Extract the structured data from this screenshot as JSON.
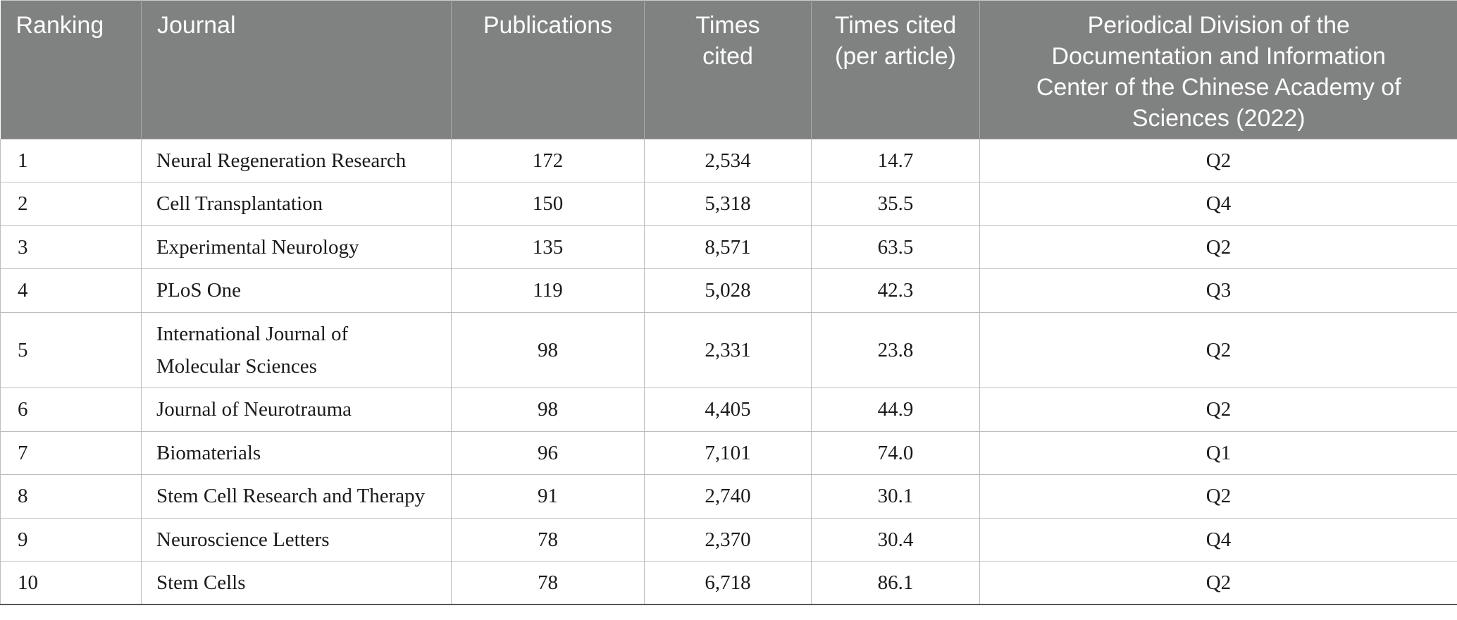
{
  "table": {
    "header": {
      "columns": [
        {
          "label": "Ranking"
        },
        {
          "label": "Journal"
        },
        {
          "label": "Publications"
        },
        {
          "label": "Times cited"
        },
        {
          "label": "Times cited (per article)"
        },
        {
          "label": "Periodical Division of the Documentation and Information Center of the Chinese Academy of Sciences (2022)"
        }
      ]
    },
    "rows": [
      {
        "ranking": "1",
        "journal": "Neural Regeneration Research",
        "publications": "172",
        "times_cited": "2,534",
        "times_cited_per_article": "14.7",
        "division": "Q2"
      },
      {
        "ranking": "2",
        "journal": "Cell Transplantation",
        "publications": "150",
        "times_cited": "5,318",
        "times_cited_per_article": "35.5",
        "division": "Q4"
      },
      {
        "ranking": "3",
        "journal": "Experimental Neurology",
        "publications": "135",
        "times_cited": "8,571",
        "times_cited_per_article": "63.5",
        "division": "Q2"
      },
      {
        "ranking": "4",
        "journal": "PLoS One",
        "publications": "119",
        "times_cited": "5,028",
        "times_cited_per_article": "42.3",
        "division": "Q3"
      },
      {
        "ranking": "5",
        "journal": "International Journal of Molecular Sciences",
        "publications": "98",
        "times_cited": "2,331",
        "times_cited_per_article": "23.8",
        "division": "Q2"
      },
      {
        "ranking": "6",
        "journal": "Journal of Neurotrauma",
        "publications": "98",
        "times_cited": "4,405",
        "times_cited_per_article": "44.9",
        "division": "Q2"
      },
      {
        "ranking": "7",
        "journal": "Biomaterials",
        "publications": "96",
        "times_cited": "7,101",
        "times_cited_per_article": "74.0",
        "division": "Q1"
      },
      {
        "ranking": "8",
        "journal": "Stem Cell Research and Therapy",
        "publications": "91",
        "times_cited": "2,740",
        "times_cited_per_article": "30.1",
        "division": "Q2"
      },
      {
        "ranking": "9",
        "journal": "Neuroscience Letters",
        "publications": "78",
        "times_cited": "2,370",
        "times_cited_per_article": "30.4",
        "division": "Q4"
      },
      {
        "ranking": "10",
        "journal": "Stem Cells",
        "publications": "78",
        "times_cited": "6,718",
        "times_cited_per_article": "86.1",
        "division": "Q2"
      }
    ],
    "colors": {
      "header_bg": "#808281",
      "header_text": "#fcfcfc",
      "header_sep": "#a5a9a7",
      "body_text": "#1b1b1b",
      "grid_line": "#bdbdbd",
      "bottom_rule": "#585858"
    }
  }
}
